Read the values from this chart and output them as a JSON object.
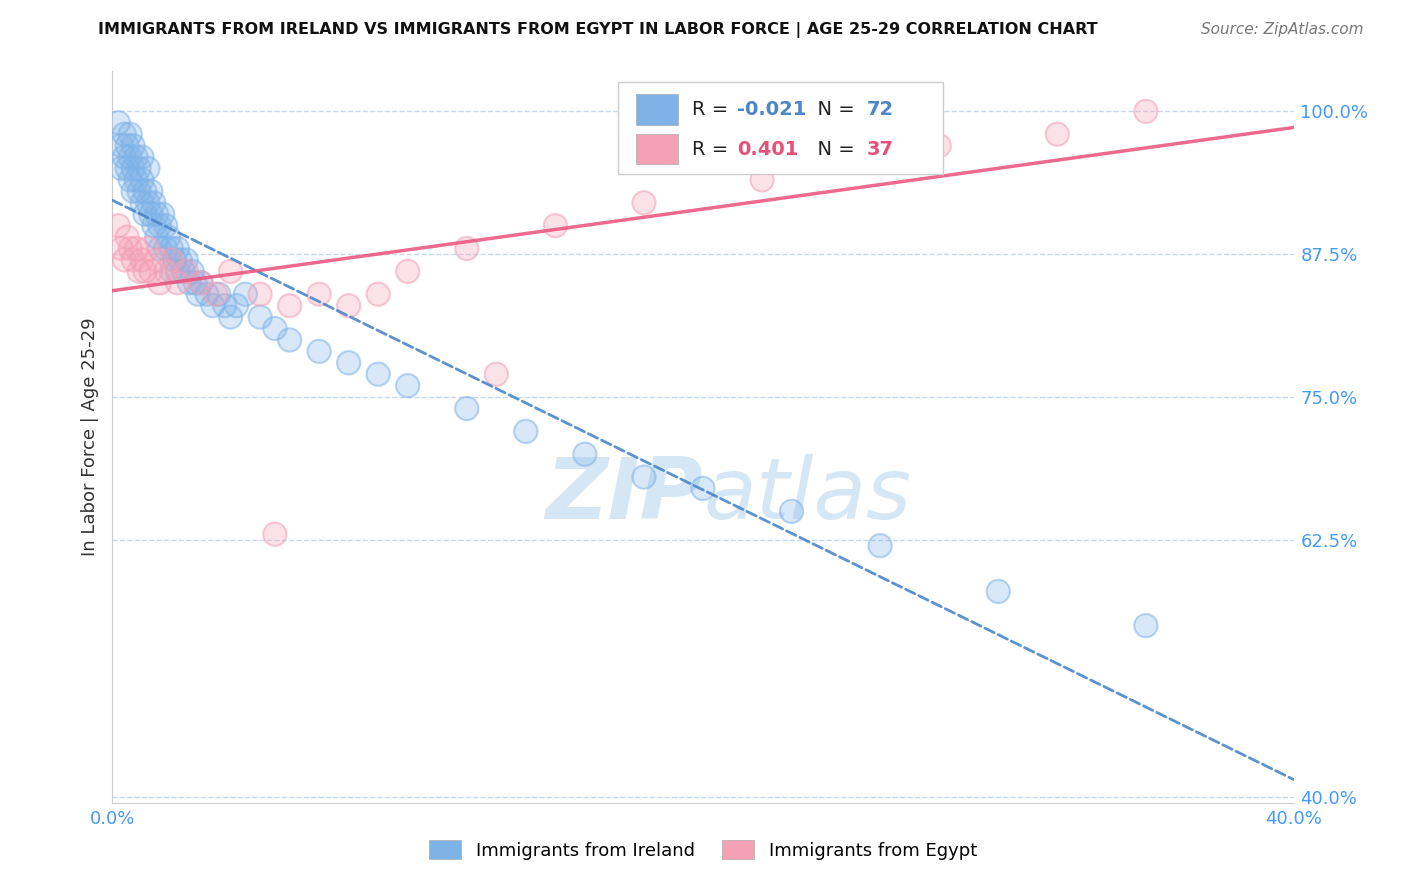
{
  "title": "IMMIGRANTS FROM IRELAND VS IMMIGRANTS FROM EGYPT IN LABOR FORCE | AGE 25-29 CORRELATION CHART",
  "source": "Source: ZipAtlas.com",
  "ylabel": "In Labor Force | Age 25-29",
  "xlim": [
    0.0,
    0.4
  ],
  "ylim": [
    0.395,
    1.035
  ],
  "ireland_color": "#7fb3e8",
  "egypt_color": "#f4a0b5",
  "ireland_R": -0.021,
  "ireland_N": 72,
  "egypt_R": 0.401,
  "egypt_N": 37,
  "ireland_line_color": "#4a86c8",
  "egypt_line_color": "#e8507a",
  "watermark_zip": "ZIP",
  "watermark_atlas": "atlas",
  "background_color": "#ffffff",
  "grid_color": "#c8d8ec",
  "tick_color": "#4499ff",
  "yticks": [
    0.4,
    0.625,
    0.75,
    0.875,
    1.0
  ],
  "yticklabels": [
    "40.0%",
    "62.5%",
    "75.0%",
    "87.5%",
    "100.0%"
  ],
  "xticks": [
    0.0,
    0.05,
    0.1,
    0.15,
    0.2,
    0.25,
    0.3,
    0.35,
    0.4
  ],
  "xticklabels": [
    "0.0%",
    "",
    "",
    "",
    "",
    "",
    "",
    "",
    "40.0%"
  ],
  "ireland_x": [
    0.002,
    0.003,
    0.003,
    0.004,
    0.004,
    0.005,
    0.005,
    0.006,
    0.006,
    0.006,
    0.007,
    0.007,
    0.007,
    0.008,
    0.008,
    0.009,
    0.009,
    0.01,
    0.01,
    0.01,
    0.011,
    0.011,
    0.012,
    0.012,
    0.013,
    0.013,
    0.014,
    0.014,
    0.015,
    0.015,
    0.016,
    0.016,
    0.017,
    0.018,
    0.018,
    0.019,
    0.02,
    0.02,
    0.021,
    0.022,
    0.022,
    0.023,
    0.024,
    0.025,
    0.026,
    0.027,
    0.028,
    0.029,
    0.03,
    0.032,
    0.034,
    0.036,
    0.038,
    0.04,
    0.042,
    0.045,
    0.05,
    0.055,
    0.06,
    0.07,
    0.08,
    0.09,
    0.1,
    0.12,
    0.14,
    0.16,
    0.18,
    0.2,
    0.23,
    0.26,
    0.3,
    0.35
  ],
  "ireland_y": [
    0.99,
    0.97,
    0.95,
    0.98,
    0.96,
    0.97,
    0.95,
    0.96,
    0.98,
    0.94,
    0.93,
    0.95,
    0.97,
    0.96,
    0.94,
    0.95,
    0.93,
    0.94,
    0.92,
    0.96,
    0.93,
    0.91,
    0.92,
    0.95,
    0.93,
    0.91,
    0.92,
    0.9,
    0.91,
    0.89,
    0.9,
    0.88,
    0.91,
    0.9,
    0.88,
    0.89,
    0.88,
    0.86,
    0.87,
    0.86,
    0.88,
    0.87,
    0.86,
    0.87,
    0.85,
    0.86,
    0.85,
    0.84,
    0.85,
    0.84,
    0.83,
    0.84,
    0.83,
    0.82,
    0.83,
    0.84,
    0.82,
    0.81,
    0.8,
    0.79,
    0.78,
    0.77,
    0.76,
    0.74,
    0.72,
    0.7,
    0.68,
    0.67,
    0.65,
    0.62,
    0.58,
    0.55
  ],
  "egypt_x": [
    0.002,
    0.003,
    0.004,
    0.005,
    0.006,
    0.007,
    0.008,
    0.009,
    0.01,
    0.011,
    0.012,
    0.013,
    0.015,
    0.016,
    0.018,
    0.02,
    0.022,
    0.025,
    0.03,
    0.035,
    0.04,
    0.05,
    0.06,
    0.07,
    0.08,
    0.09,
    0.1,
    0.12,
    0.15,
    0.18,
    0.22,
    0.25,
    0.28,
    0.32,
    0.35,
    0.055,
    0.13
  ],
  "egypt_y": [
    0.9,
    0.88,
    0.87,
    0.89,
    0.88,
    0.87,
    0.88,
    0.86,
    0.87,
    0.86,
    0.88,
    0.86,
    0.87,
    0.85,
    0.86,
    0.87,
    0.85,
    0.86,
    0.85,
    0.84,
    0.86,
    0.84,
    0.83,
    0.84,
    0.83,
    0.84,
    0.86,
    0.88,
    0.9,
    0.92,
    0.94,
    0.96,
    0.97,
    0.98,
    1.0,
    0.63,
    0.77
  ]
}
